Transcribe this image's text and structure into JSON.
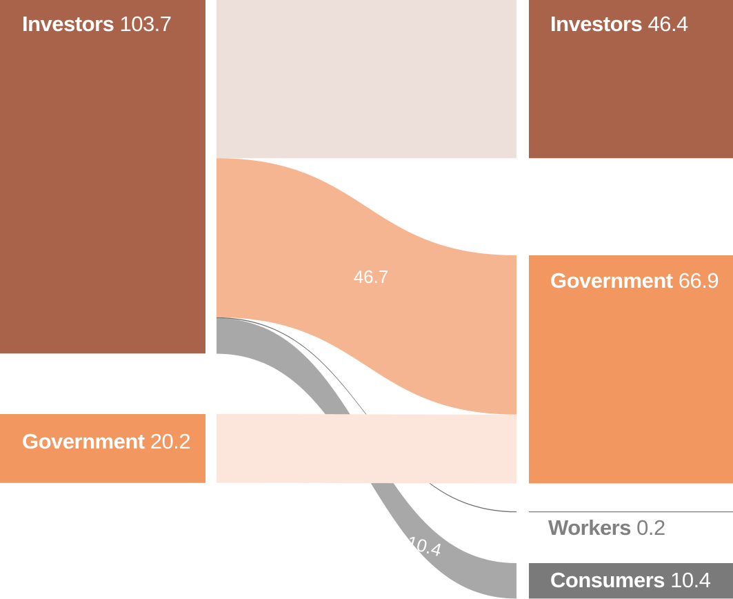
{
  "chart_data": {
    "type": "sankey",
    "title": "",
    "sources": [
      {
        "id": "inv_src",
        "name": "Investors",
        "value_label": "103.7",
        "value": 103.7,
        "color": "#A8634A",
        "label_color": "#ffffff"
      },
      {
        "id": "gov_src",
        "name": "Government",
        "value_label": "20.2",
        "value": 20.2,
        "color": "#F2975F",
        "label_color": "#ffffff"
      }
    ],
    "targets": [
      {
        "id": "inv_tgt",
        "name": "Investors",
        "value_label": "46.4",
        "value": 46.4,
        "color": "#A8634A",
        "label_color": "#ffffff"
      },
      {
        "id": "gov_tgt",
        "name": "Government",
        "value_label": "66.9",
        "value": 66.9,
        "color": "#F2975F",
        "label_color": "#ffffff"
      },
      {
        "id": "wrk_tgt",
        "name": "Workers",
        "value_label": "0.2",
        "value": 0.2,
        "color": "#808080",
        "label_color": "#808080"
      },
      {
        "id": "con_tgt",
        "name": "Consumers",
        "value_label": "10.4",
        "value": 10.4,
        "color": "#7A7A7A",
        "label_color": "#ffffff"
      }
    ],
    "flows": [
      {
        "source": "inv_src",
        "target": "inv_tgt",
        "value": 46.4,
        "label": "",
        "color": "#EDE0DB"
      },
      {
        "source": "inv_src",
        "target": "gov_tgt",
        "value": 46.7,
        "label": "46.7",
        "color": "#F5B590"
      },
      {
        "source": "inv_src",
        "target": "wrk_tgt",
        "value": 0.2,
        "label": "",
        "color": "#707070"
      },
      {
        "source": "inv_src",
        "target": "con_tgt",
        "value": 10.4,
        "label": "10.4",
        "color": "#A3A3A3"
      },
      {
        "source": "gov_src",
        "target": "gov_tgt",
        "value": 20.2,
        "label": "",
        "color": "#FCE6DB"
      }
    ]
  }
}
